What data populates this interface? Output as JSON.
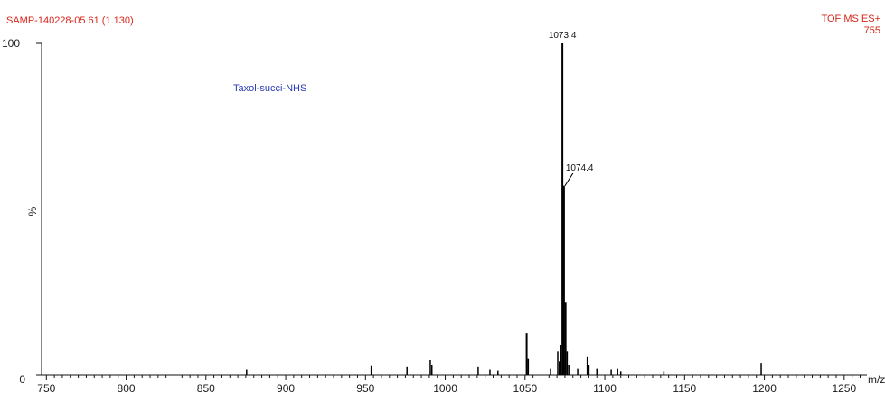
{
  "header": {
    "sample_id": "SAMP-140228-05 61 (1.130)",
    "mode": "TOF MS ES+",
    "intensity": "755"
  },
  "annotation": "Taxol-succi-NHS",
  "chart_data": {
    "type": "bar",
    "xlabel": "m/z",
    "ylabel": "%",
    "xlim": [
      747,
      1262
    ],
    "ylim": [
      0,
      100
    ],
    "x_ticks": [
      "750",
      "800",
      "850",
      "900",
      "950",
      "1000",
      "1050",
      "1100",
      "1150",
      "1200",
      "1250"
    ],
    "y_ticks": [
      "0",
      "100"
    ],
    "labeled_peaks": [
      {
        "mz": 1073.4,
        "intensity": 100,
        "label": "1073.4"
      },
      {
        "mz": 1074.4,
        "intensity": 57,
        "label": "1074.4"
      }
    ],
    "peaks": [
      {
        "mz": 875.5,
        "intensity": 1.5
      },
      {
        "mz": 953.6,
        "intensity": 2.8
      },
      {
        "mz": 976.0,
        "intensity": 2.5
      },
      {
        "mz": 990.6,
        "intensity": 4.5
      },
      {
        "mz": 991.6,
        "intensity": 3.0
      },
      {
        "mz": 1020.6,
        "intensity": 2.5
      },
      {
        "mz": 1028.0,
        "intensity": 1.5
      },
      {
        "mz": 1033.0,
        "intensity": 1.2
      },
      {
        "mz": 1051.0,
        "intensity": 12.5
      },
      {
        "mz": 1052.0,
        "intensity": 5.0
      },
      {
        "mz": 1066.0,
        "intensity": 2.0
      },
      {
        "mz": 1070.5,
        "intensity": 7.0
      },
      {
        "mz": 1071.5,
        "intensity": 4.0
      },
      {
        "mz": 1072.4,
        "intensity": 9.0
      },
      {
        "mz": 1073.4,
        "intensity": 100
      },
      {
        "mz": 1074.4,
        "intensity": 57
      },
      {
        "mz": 1075.4,
        "intensity": 22
      },
      {
        "mz": 1076.4,
        "intensity": 7.0
      },
      {
        "mz": 1077.4,
        "intensity": 3.0
      },
      {
        "mz": 1083.0,
        "intensity": 2.0
      },
      {
        "mz": 1089.0,
        "intensity": 5.5
      },
      {
        "mz": 1090.0,
        "intensity": 3.0
      },
      {
        "mz": 1095.0,
        "intensity": 2.0
      },
      {
        "mz": 1104.0,
        "intensity": 1.5
      },
      {
        "mz": 1108.0,
        "intensity": 2.0
      },
      {
        "mz": 1110.0,
        "intensity": 1.0
      },
      {
        "mz": 1137.0,
        "intensity": 1.0
      },
      {
        "mz": 1198.0,
        "intensity": 3.5
      }
    ]
  }
}
